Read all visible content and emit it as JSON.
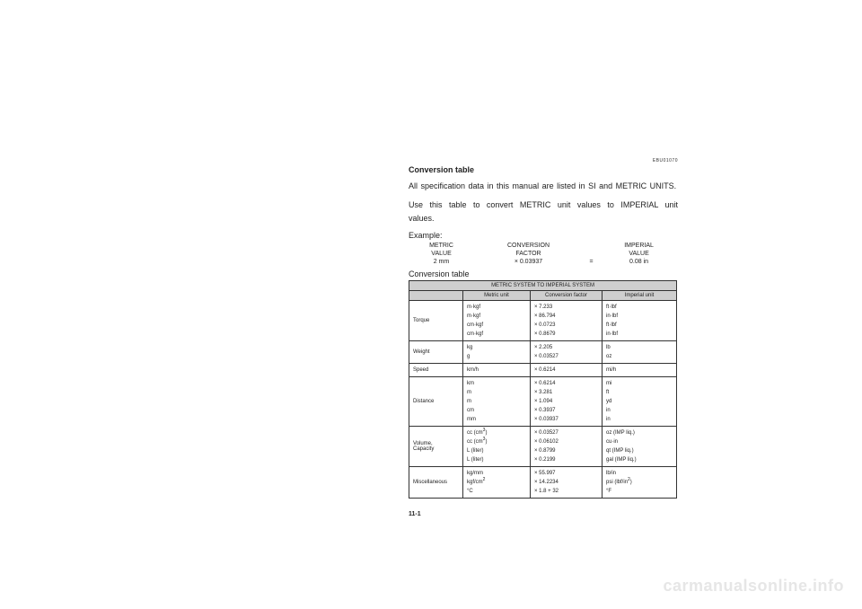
{
  "refcode": "EBU01070",
  "heading": "Conversion table",
  "para1": "All specification data in this manual are listed in SI and METRIC UNITS.",
  "para2": "Use this table to convert METRIC unit values to IMPERIAL unit values.",
  "example_label": "Example:",
  "example": {
    "h_metric": "METRIC",
    "h_conversion": "CONVERSION",
    "h_imperial": "IMPERIAL",
    "r_value1": "VALUE",
    "r_factor": "FACTOR",
    "r_value2": "VALUE",
    "val_metric": "2 mm",
    "val_factor": "× 0.03937",
    "val_eq": "=",
    "val_imperial": "0.08 in"
  },
  "convtable_label": "Conversion table",
  "table": {
    "title": "METRIC SYSTEM TO IMPERIAL SYSTEM",
    "headers": {
      "empty": "",
      "metric": "Metric unit",
      "factor": "Conversion factor",
      "imperial": "Imperial unit"
    },
    "rows": [
      {
        "cat": "Torque",
        "metric": "m·kgf<br>m·kgf<br>cm·kgf<br>cm·kgf",
        "factor": "× 7.233<br>× 86.794<br>× 0.0723<br>× 0.8679",
        "imperial": "ft·lbf<br>in·lbf<br>ft·lbf<br>in·lbf"
      },
      {
        "cat": "Weight",
        "metric": "kg<br>g",
        "factor": "× 2.205<br>× 0.03527",
        "imperial": "lb<br>oz"
      },
      {
        "cat": "Speed",
        "metric": "km/h",
        "factor": "× 0.6214",
        "imperial": "mi/h"
      },
      {
        "cat": "Distance",
        "metric": "km<br>m<br>m<br>cm<br>mm",
        "factor": "× 0.6214<br>× 3.281<br>× 1.094<br>× 0.3937<br>× 0.03937",
        "imperial": "mi<br>ft<br>yd<br>in<br>in"
      },
      {
        "cat": "Volume,<br>Capacity",
        "metric": "cc (cm<sup>3</sup>)<br>cc (cm<sup>3</sup>)<br>L (liter)<br>L (liter)",
        "factor": "× 0.03527<br>× 0.06102<br>× 0.8799<br>× 0.2199",
        "imperial": "oz (IMP liq.)<br>cu·in<br>qt (IMP liq.)<br>gal (IMP liq.)"
      },
      {
        "cat": "Miscellaneous",
        "metric": "kg/mm<br>kgf/cm<sup>2</sup><br>°C",
        "factor": "× 55.997<br>× 14.2234<br>× 1.8 + 32",
        "imperial": "lb/in<br>psi (lbf/in<sup>2</sup>)<br>°F"
      }
    ]
  },
  "page_num": "11-1",
  "watermark": "carmanualsonline.info"
}
